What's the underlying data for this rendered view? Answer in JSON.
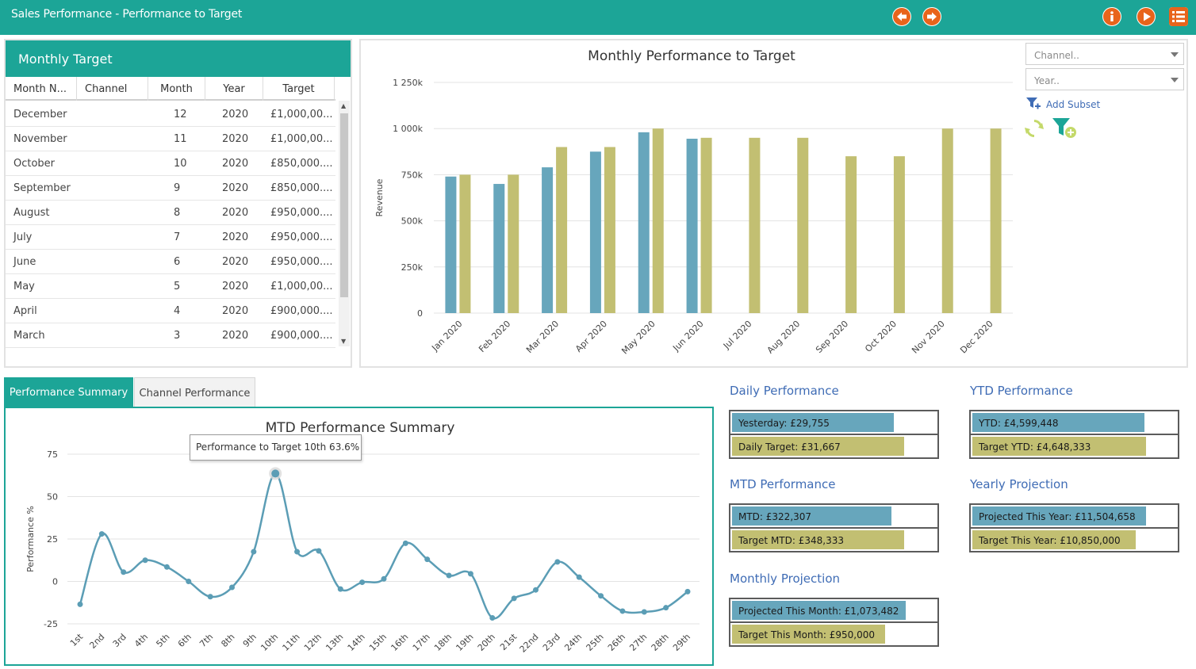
{
  "app": {
    "title": "Sales Performance - Performance to Target"
  },
  "toolbar": {
    "icons": [
      "back-arrow-icon",
      "forward-arrow-icon",
      "info-icon",
      "play-icon",
      "list-menu-icon"
    ],
    "icon_colors": {
      "arrows": "#e8641b",
      "accent": "#1ca597"
    }
  },
  "monthly_target": {
    "title": "Monthly Target",
    "columns": [
      "Month N...",
      "Channel",
      "Month",
      "Year",
      "Target"
    ],
    "rows": [
      {
        "month_name": "December",
        "channel": "",
        "month": "12",
        "year": "2020",
        "target": "£1,000,00..."
      },
      {
        "month_name": "November",
        "channel": "",
        "month": "11",
        "year": "2020",
        "target": "£1,000,00..."
      },
      {
        "month_name": "October",
        "channel": "",
        "month": "10",
        "year": "2020",
        "target": "£850,000...."
      },
      {
        "month_name": "September",
        "channel": "",
        "month": "9",
        "year": "2020",
        "target": "£850,000...."
      },
      {
        "month_name": "August",
        "channel": "",
        "month": "8",
        "year": "2020",
        "target": "£950,000...."
      },
      {
        "month_name": "July",
        "channel": "",
        "month": "7",
        "year": "2020",
        "target": "£950,000...."
      },
      {
        "month_name": "June",
        "channel": "",
        "month": "6",
        "year": "2020",
        "target": "£950,000...."
      },
      {
        "month_name": "May",
        "channel": "",
        "month": "5",
        "year": "2020",
        "target": "£1,000,00..."
      },
      {
        "month_name": "April",
        "channel": "",
        "month": "4",
        "year": "2020",
        "target": "£900,000...."
      },
      {
        "month_name": "March",
        "channel": "",
        "month": "3",
        "year": "2020",
        "target": "£900,000...."
      }
    ]
  },
  "filters": {
    "channel_placeholder": "Channel..",
    "year_placeholder": "Year..",
    "add_subset": "Add Subset"
  },
  "tabs": {
    "active": "Performance Summary",
    "inactive": "Channel Performance"
  },
  "tooltip": {
    "text": "Performance to Target 10th 63.6%"
  },
  "kpis": {
    "daily": {
      "title": "Daily Performance",
      "actual": "Yesterday: £29,755",
      "target": "Daily Target: £31,667",
      "actual_fill": 0.78,
      "target_fill": 0.83
    },
    "ytd": {
      "title": "YTD Performance",
      "actual": "YTD: £4,599,448",
      "target": "Target YTD: £4,648,333",
      "actual_fill": 0.83,
      "target_fill": 0.84
    },
    "mtd": {
      "title": "MTD Performance",
      "actual": "MTD: £322,307",
      "target": "Target MTD: £348,333",
      "actual_fill": 0.77,
      "target_fill": 0.83
    },
    "yearly": {
      "title": "Yearly Projection",
      "actual": "Projected This Year: £11,504,658",
      "target": "Target This Year: £10,850,000",
      "actual_fill": 0.84,
      "target_fill": 0.79
    },
    "monthly": {
      "title": "Monthly Projection",
      "actual": "Projected This Month: £1,073,482",
      "target": "Target This Month: £950,000",
      "actual_fill": 0.84,
      "target_fill": 0.74
    }
  },
  "chart_data": [
    {
      "type": "bar",
      "title": "Monthly Performance to Target",
      "xlabel": "",
      "ylabel": "Revenue",
      "ylim": [
        0,
        1250000
      ],
      "ytick_labels": [
        "0",
        "250k",
        "500k",
        "750k",
        "1 000k",
        "1 250k"
      ],
      "categories": [
        "Jan 2020",
        "Feb 2020",
        "Mar 2020",
        "Apr 2020",
        "May 2020",
        "Jun 2020",
        "Jul 2020",
        "Aug 2020",
        "Sep 2020",
        "Oct 2020",
        "Nov 2020",
        "Dec 2020"
      ],
      "series": [
        {
          "color": "#67a6bc",
          "values": [
            740000,
            700000,
            790000,
            875000,
            980000,
            945000,
            null,
            null,
            null,
            null,
            null,
            null
          ]
        },
        {
          "color": "#c2bf72",
          "values": [
            750000,
            750000,
            900000,
            900000,
            1000000,
            950000,
            950000,
            950000,
            850000,
            850000,
            1000000,
            1000000
          ]
        }
      ],
      "grid": true,
      "legend": "none"
    },
    {
      "type": "line",
      "title": "MTD Performance Summary",
      "xlabel": "",
      "ylabel": "Performance %",
      "ylim": [
        -25,
        75
      ],
      "ytick_labels": [
        "-25",
        "0",
        "25",
        "50",
        "75"
      ],
      "categories": [
        "1st",
        "2nd",
        "3rd",
        "4th",
        "5th",
        "6th",
        "7th",
        "8th",
        "9th",
        "10th",
        "11th",
        "12th",
        "13th",
        "14th",
        "15th",
        "16th",
        "17th",
        "18th",
        "19th",
        "20th",
        "21st",
        "22nd",
        "23rd",
        "24th",
        "25th",
        "26th",
        "27th",
        "28th",
        "29th"
      ],
      "series": [
        {
          "color": "#5b9db5",
          "values": [
            -13.5,
            28,
            5.5,
            12.5,
            8.5,
            0,
            -9,
            -3.5,
            17.5,
            63.6,
            17.5,
            18,
            -4.5,
            -0.5,
            1.5,
            22.5,
            13,
            3.5,
            4.5,
            -21.5,
            -10,
            -5,
            11.5,
            2.5,
            -8.5,
            -17.5,
            -18,
            -15.5,
            -6
          ]
        }
      ],
      "highlight_index": 9,
      "grid": true,
      "legend": "none"
    }
  ]
}
